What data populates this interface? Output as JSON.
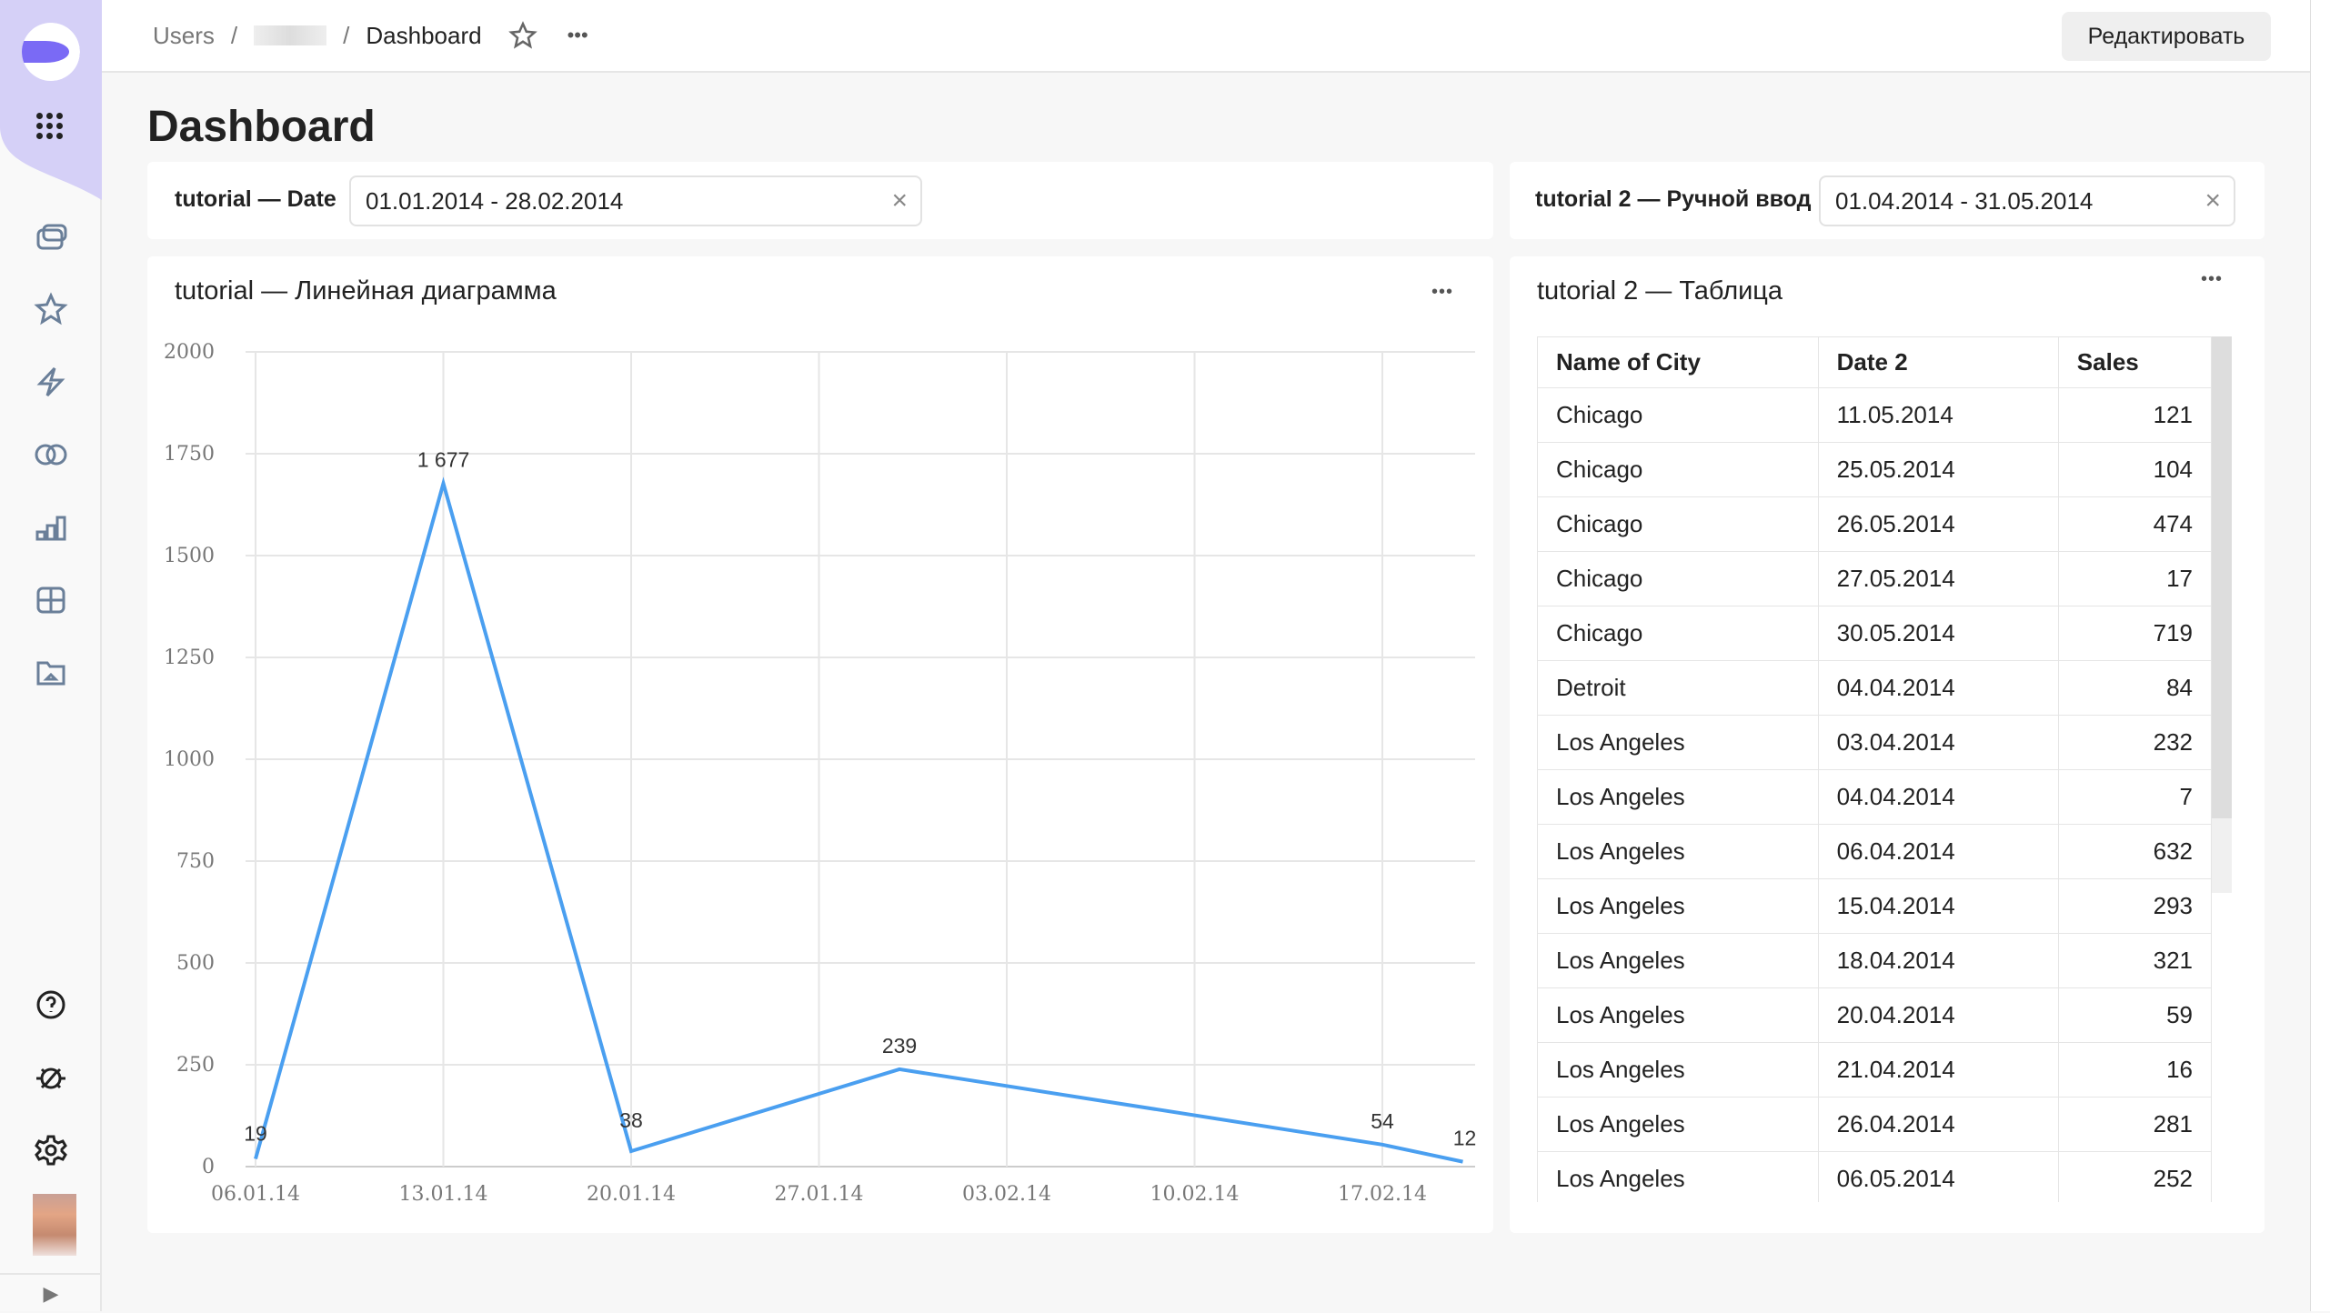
{
  "header": {
    "breadcrumbs": [
      "Users",
      "Dashboard"
    ],
    "edit_label": "Редактировать"
  },
  "page": {
    "title": "Dashboard"
  },
  "filters": [
    {
      "label": "tutorial — Date",
      "value": "01.01.2014 - 28.02.2014"
    },
    {
      "label": "tutorial 2 — Ручной ввод",
      "value": "01.04.2014 - 31.05.2014"
    }
  ],
  "chart_panel": {
    "title": "tutorial — Линейная диаграмма"
  },
  "chart_data": {
    "type": "line",
    "title": "tutorial — Линейная диаграмма",
    "x": [
      "06.01.14",
      "13.01.14",
      "20.01.14",
      "30.01.14",
      "17.02.14",
      "20.02.14"
    ],
    "values": [
      19,
      1677,
      38,
      239,
      54,
      12
    ],
    "data_labels": [
      "19",
      "1 677",
      "38",
      "239",
      "54",
      "12"
    ],
    "x_ticks": [
      "06.01.14",
      "13.01.14",
      "20.01.14",
      "27.01.14",
      "03.02.14",
      "10.02.14",
      "17.02.14"
    ],
    "y_ticks": [
      0,
      250,
      500,
      750,
      1000,
      1250,
      1500,
      1750,
      2000
    ],
    "ylim": [
      0,
      2000
    ],
    "grid": true,
    "color": "#4a9ff0"
  },
  "table_panel": {
    "title": "tutorial 2 — Таблица",
    "columns": [
      "Name of City",
      "Date 2",
      "Sales"
    ],
    "rows": [
      [
        "Chicago",
        "11.05.2014",
        "121"
      ],
      [
        "Chicago",
        "25.05.2014",
        "104"
      ],
      [
        "Chicago",
        "26.05.2014",
        "474"
      ],
      [
        "Chicago",
        "27.05.2014",
        "17"
      ],
      [
        "Chicago",
        "30.05.2014",
        "719"
      ],
      [
        "Detroit",
        "04.04.2014",
        "84"
      ],
      [
        "Los Angeles",
        "03.04.2014",
        "232"
      ],
      [
        "Los Angeles",
        "04.04.2014",
        "7"
      ],
      [
        "Los Angeles",
        "06.04.2014",
        "632"
      ],
      [
        "Los Angeles",
        "15.04.2014",
        "293"
      ],
      [
        "Los Angeles",
        "18.04.2014",
        "321"
      ],
      [
        "Los Angeles",
        "20.04.2014",
        "59"
      ],
      [
        "Los Angeles",
        "21.04.2014",
        "16"
      ],
      [
        "Los Angeles",
        "26.04.2014",
        "281"
      ],
      [
        "Los Angeles",
        "06.05.2014",
        "252"
      ]
    ]
  },
  "icons": {
    "clear": "×",
    "more": "•••",
    "collapse": "▶"
  },
  "colors": {
    "accent": "#7a6af5",
    "line": "#4a9ff0"
  }
}
